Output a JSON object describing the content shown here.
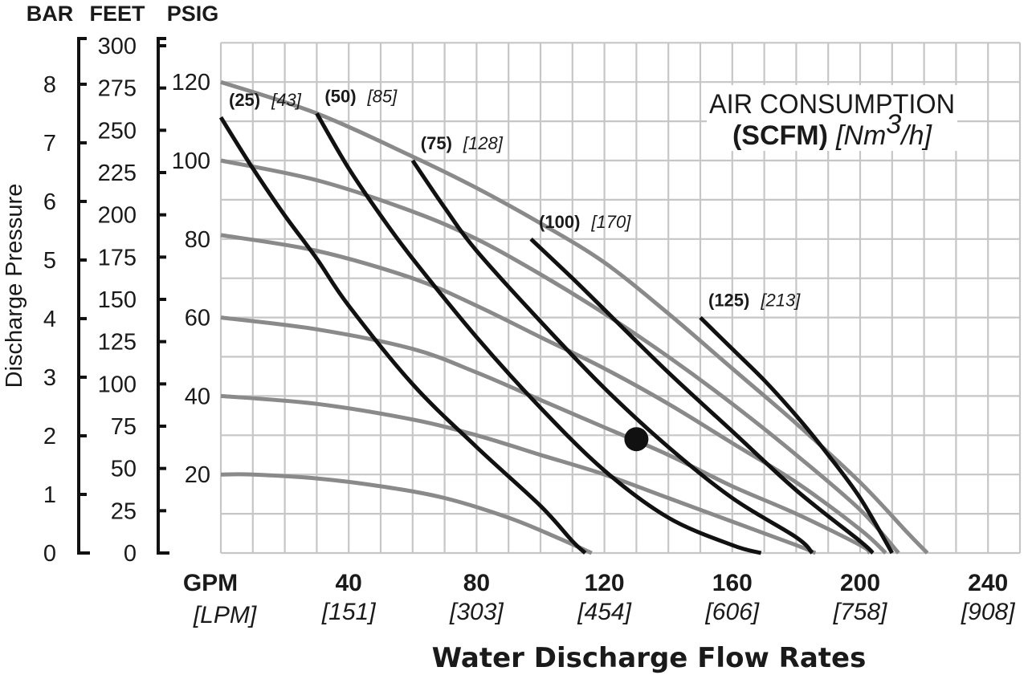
{
  "chart_data": {
    "type": "line",
    "title": "",
    "xlabel": "Water Discharge Flow Rates",
    "ylabel": "Discharge Pressure",
    "x_axis": {
      "unit_primary": "GPM",
      "unit_secondary": "[LPM]",
      "range": [
        0,
        250
      ],
      "ticks": [
        40,
        80,
        120,
        160,
        200,
        240
      ],
      "tick_labels_secondary": [
        "[151]",
        "[303]",
        "[454]",
        "[606]",
        "[758]",
        "[908]"
      ],
      "grid_step": 10
    },
    "y_axes": [
      {
        "unit": "BAR",
        "range": [
          0,
          8.78
        ],
        "ticks": [
          0,
          1,
          2,
          3,
          4,
          5,
          6,
          7,
          8
        ]
      },
      {
        "unit": "FEET",
        "range": [
          0,
          300
        ],
        "ticks": [
          0,
          25,
          50,
          75,
          100,
          125,
          150,
          175,
          200,
          225,
          250,
          275,
          300
        ]
      },
      {
        "unit": "PSIG",
        "range": [
          0,
          130
        ],
        "ticks": [
          20,
          40,
          60,
          80,
          100,
          120
        ],
        "grid_step": 10
      }
    ],
    "grid": true,
    "legend": {
      "title": "AIR CONSUMPTION",
      "unit_bold": "(SCFM)",
      "unit_italic": "[Nm",
      "unit_italic_sup": "3",
      "unit_italic_end": "/h]",
      "placement": "top-right"
    },
    "series": [
      {
        "name": "(25) [43]",
        "kind": "air-consumption",
        "label_bold": "(25)",
        "label_italic": "[43]",
        "points": [
          [
            0,
            111
          ],
          [
            10,
            98
          ],
          [
            20,
            86
          ],
          [
            30,
            75
          ],
          [
            40,
            63
          ],
          [
            60,
            43
          ],
          [
            80,
            27
          ],
          [
            100,
            12
          ],
          [
            110,
            3
          ],
          [
            114,
            0
          ]
        ]
      },
      {
        "name": "(50) [85]",
        "kind": "air-consumption",
        "label_bold": "(50)",
        "label_italic": "[85]",
        "points": [
          [
            30,
            112
          ],
          [
            40,
            98
          ],
          [
            50,
            86
          ],
          [
            60,
            75
          ],
          [
            80,
            55
          ],
          [
            100,
            37
          ],
          [
            120,
            21
          ],
          [
            140,
            9
          ],
          [
            160,
            2
          ],
          [
            169,
            0
          ]
        ]
      },
      {
        "name": "(75) [128]",
        "kind": "air-consumption",
        "label_bold": "(75)",
        "label_italic": "[128]",
        "points": [
          [
            60,
            100
          ],
          [
            70,
            88
          ],
          [
            80,
            77
          ],
          [
            100,
            59
          ],
          [
            120,
            42
          ],
          [
            140,
            27
          ],
          [
            160,
            14
          ],
          [
            180,
            4
          ],
          [
            185,
            0
          ]
        ]
      },
      {
        "name": "(100) [170]",
        "kind": "air-consumption",
        "label_bold": "(100)",
        "label_italic": "[170]",
        "points": [
          [
            97,
            80
          ],
          [
            110,
            70
          ],
          [
            120,
            62
          ],
          [
            140,
            46
          ],
          [
            160,
            31
          ],
          [
            180,
            16
          ],
          [
            200,
            3
          ],
          [
            204,
            0
          ]
        ]
      },
      {
        "name": "(125) [213]",
        "kind": "air-consumption",
        "label_bold": "(125)",
        "label_italic": "[213]",
        "points": [
          [
            150,
            60
          ],
          [
            160,
            52
          ],
          [
            170,
            44
          ],
          [
            180,
            35
          ],
          [
            190,
            25
          ],
          [
            200,
            14
          ],
          [
            210,
            0
          ]
        ]
      },
      {
        "kind": "pressure",
        "points": [
          [
            0,
            120
          ],
          [
            30,
            112
          ],
          [
            60,
            101
          ],
          [
            80,
            93
          ],
          [
            100,
            84
          ],
          [
            120,
            74
          ],
          [
            140,
            61
          ],
          [
            160,
            47
          ],
          [
            180,
            33
          ],
          [
            200,
            18
          ],
          [
            215,
            5
          ],
          [
            221,
            0
          ]
        ]
      },
      {
        "kind": "pressure",
        "points": [
          [
            0,
            100
          ],
          [
            30,
            95
          ],
          [
            60,
            87
          ],
          [
            80,
            80
          ],
          [
            100,
            71
          ],
          [
            120,
            61
          ],
          [
            140,
            50
          ],
          [
            160,
            38
          ],
          [
            180,
            25
          ],
          [
            200,
            11
          ],
          [
            212,
            0
          ]
        ]
      },
      {
        "kind": "pressure",
        "points": [
          [
            0,
            81
          ],
          [
            30,
            77
          ],
          [
            60,
            70
          ],
          [
            80,
            63
          ],
          [
            100,
            55
          ],
          [
            120,
            47
          ],
          [
            140,
            38
          ],
          [
            160,
            28
          ],
          [
            180,
            18
          ],
          [
            200,
            6
          ],
          [
            208,
            0
          ]
        ]
      },
      {
        "kind": "pressure",
        "points": [
          [
            0,
            60
          ],
          [
            30,
            57
          ],
          [
            60,
            52
          ],
          [
            80,
            46
          ],
          [
            100,
            39
          ],
          [
            120,
            32
          ],
          [
            140,
            25
          ],
          [
            160,
            17
          ],
          [
            180,
            10
          ],
          [
            200,
            2
          ],
          [
            203,
            0
          ]
        ]
      },
      {
        "kind": "pressure",
        "points": [
          [
            0,
            40
          ],
          [
            30,
            38
          ],
          [
            60,
            34
          ],
          [
            80,
            30
          ],
          [
            100,
            25
          ],
          [
            120,
            20
          ],
          [
            140,
            14
          ],
          [
            160,
            8
          ],
          [
            180,
            2
          ],
          [
            186,
            0
          ]
        ]
      },
      {
        "kind": "pressure",
        "points": [
          [
            0,
            20
          ],
          [
            10,
            20
          ],
          [
            30,
            19
          ],
          [
            50,
            17
          ],
          [
            70,
            14
          ],
          [
            90,
            9
          ],
          [
            105,
            4
          ],
          [
            116,
            0
          ]
        ]
      }
    ],
    "marker": {
      "x": 130,
      "y": 29
    }
  }
}
